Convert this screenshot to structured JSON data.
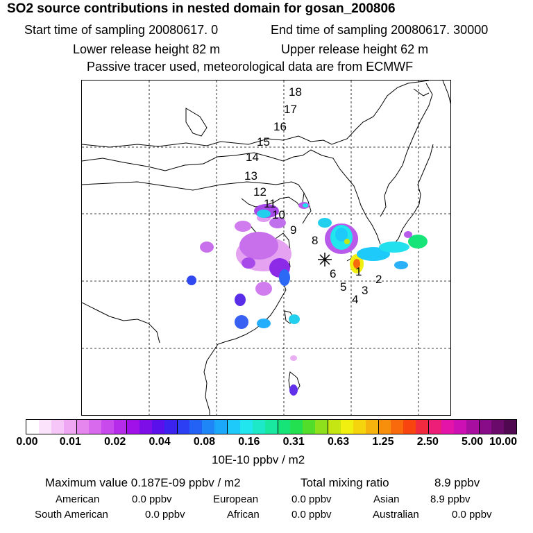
{
  "title": "SO2 source contributions in nested domain for gosan_200806",
  "header": {
    "start": "Start time of sampling 20080617.     0",
    "end": "End time of sampling 20080617. 30000",
    "lower": "Lower release height   82 m",
    "upper": "Upper release height   62 m",
    "note": "Passive tracer used, meteorological data are from ECMWF"
  },
  "track_labels": [
    "18",
    "17",
    "16",
    "15",
    "14",
    "13",
    "12",
    "11",
    "10",
    "9",
    "8",
    "6",
    "1",
    "2",
    "3",
    "4",
    "5"
  ],
  "colorbar": {
    "ticks": [
      "0.00",
      "0.01",
      "0.02",
      "0.04",
      "0.08",
      "0.16",
      "0.31",
      "0.63",
      "1.25",
      "2.50",
      "5.00",
      "10.00"
    ],
    "colors": [
      "#ffffff",
      "#fbe4fb",
      "#f5c6f7",
      "#efa6f3",
      "#e586ef",
      "#d86aed",
      "#c94aec",
      "#b52cea",
      "#a010e8",
      "#7d0ee8",
      "#5a10ea",
      "#3b22ee",
      "#2c3ff2",
      "#2462f5",
      "#1f86f8",
      "#1ba8fb",
      "#1ecaf9",
      "#22e6ee",
      "#1de8c8",
      "#19e8a0",
      "#16e478",
      "#22e050",
      "#52dd2a",
      "#8ee01c",
      "#c6e614",
      "#f0ef10",
      "#f5d40e",
      "#f6b20d",
      "#f78e0c",
      "#f86a0b",
      "#f8440e",
      "#f22a40",
      "#ec1e78",
      "#e414a8",
      "#cc10b4",
      "#a80ea0",
      "#880c88",
      "#6a0a6a",
      "#500850"
    ],
    "unit": "10E-10 ppbv / m2"
  },
  "summary": {
    "max_value": "Maximum value  0.187E-09 ppbv / m2",
    "total_label": "Total mixing ratio",
    "total_value": "8.9 ppbv"
  },
  "regions": [
    {
      "name": "American",
      "value": "0.0 ppbv"
    },
    {
      "name": "European",
      "value": "0.0 ppbv"
    },
    {
      "name": "Asian",
      "value": "8.9 ppbv"
    },
    {
      "name": "South American",
      "value": "0.0 ppbv"
    },
    {
      "name": "African",
      "value": "0.0 ppbv"
    },
    {
      "name": "Australian",
      "value": "0.0 ppbv"
    }
  ]
}
